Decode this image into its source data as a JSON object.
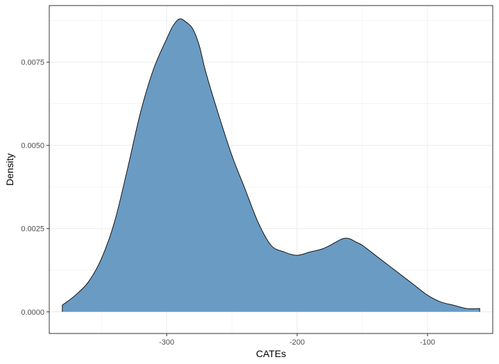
{
  "chart_data": {
    "type": "area",
    "title": "",
    "xlabel": "CATEs",
    "ylabel": "Density",
    "xlim": [
      -390,
      -50
    ],
    "ylim": [
      -0.00065,
      0.0092
    ],
    "grid": true,
    "legend": "none",
    "x_ticks": [
      -300,
      -200,
      -100
    ],
    "y_ticks": [
      0.0,
      0.0025,
      0.005,
      0.0075
    ],
    "x_tick_labels": [
      "-300",
      "-200",
      "-100"
    ],
    "y_tick_labels": [
      "0.0000",
      "0.0025",
      "0.0050",
      "0.0075"
    ],
    "colors": {
      "fill": "#6a9bc3",
      "outline": "#000000",
      "grid": "#ebebeb",
      "panel_border": "#333333"
    },
    "series": [
      {
        "x": [
          -380,
          -370,
          -360,
          -350,
          -340,
          -330,
          -320,
          -310,
          -300,
          -295,
          -290,
          -285,
          -280,
          -275,
          -270,
          -260,
          -250,
          -240,
          -230,
          -220,
          -210,
          -200,
          -190,
          -180,
          -170,
          -165,
          -160,
          -155,
          -150,
          -140,
          -130,
          -120,
          -110,
          -100,
          -90,
          -80,
          -70,
          -60
        ],
        "y": [
          0.0002,
          0.0005,
          0.0009,
          0.0016,
          0.0027,
          0.0043,
          0.006,
          0.0073,
          0.0082,
          0.0086,
          0.0088,
          0.0087,
          0.0085,
          0.008,
          0.0072,
          0.0059,
          0.0047,
          0.0037,
          0.0027,
          0.002,
          0.0018,
          0.0017,
          0.0018,
          0.0019,
          0.0021,
          0.0022,
          0.0022,
          0.0021,
          0.002,
          0.0017,
          0.0014,
          0.0011,
          0.0008,
          0.0005,
          0.0003,
          0.0002,
          0.0001,
          0.0001
        ]
      }
    ]
  }
}
